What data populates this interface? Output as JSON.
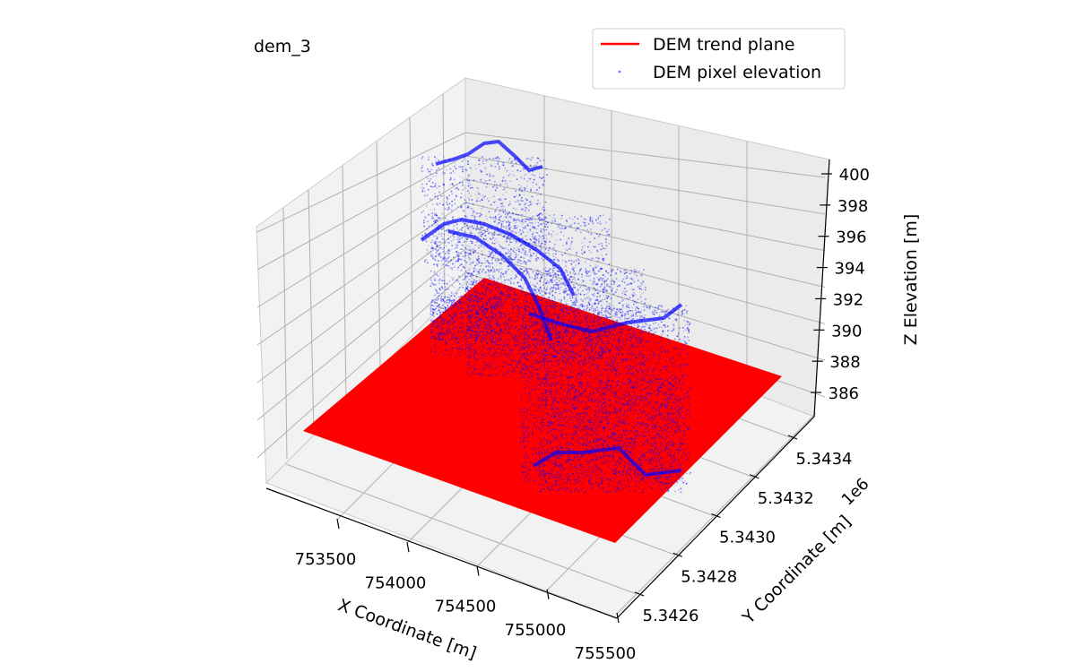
{
  "chart_data": {
    "type": "scatter3d",
    "title": "dem_3",
    "xlabel": "X Coordinate [m]",
    "ylabel": "Y Coordinate [m]",
    "zlabel": "Z Elevation [m]",
    "y_offset_label": "1e6",
    "x_ticks": [
      "753500",
      "754000",
      "754500",
      "755000",
      "755500"
    ],
    "y_ticks": [
      "5.3426",
      "5.3428",
      "5.3430",
      "5.3432",
      "5.3434"
    ],
    "z_ticks": [
      "386",
      "388",
      "390",
      "392",
      "394",
      "396",
      "398",
      "400"
    ],
    "grid": true,
    "legend_position": "top-right",
    "series": [
      {
        "name": "DEM trend plane",
        "kind": "surface",
        "color": "#ff0000"
      },
      {
        "name": "DEM pixel elevation",
        "kind": "scatter",
        "color": "#0000ff"
      }
    ]
  }
}
